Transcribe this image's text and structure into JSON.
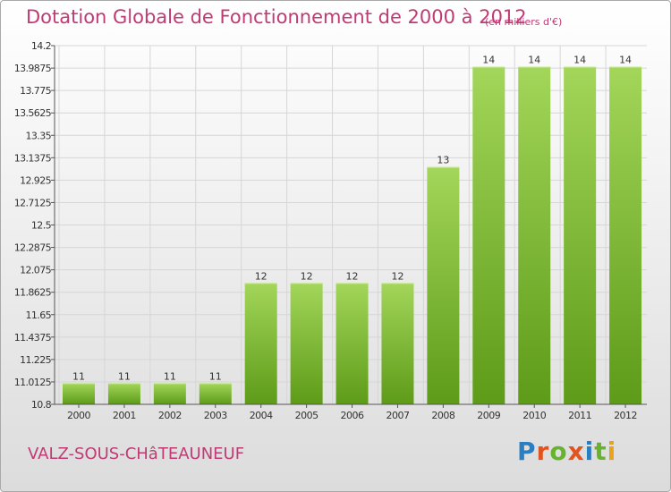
{
  "title": "Dotation Globale de Fonctionnement de 2000 à 2012",
  "unit": "(en milliers d'€)",
  "commune": "VALZ-SOUS-CHâTEAUNEUF",
  "logo": {
    "text": "Proxiti",
    "colors": [
      "#2a7ec2",
      "#e2541f",
      "#67b32e",
      "#e2541f",
      "#2a7ec2",
      "#67b32e",
      "#e8a21b"
    ]
  },
  "colors": {
    "accent": "#c03a74",
    "bar_light": "#a3d65a",
    "bar_dark": "#5d9b18",
    "grid": "#d6d6d6"
  },
  "chart_data": {
    "type": "bar",
    "title": "Dotation Globale de Fonctionnement de 2000 à 2012",
    "xlabel": "",
    "ylabel": "",
    "categories": [
      "2000",
      "2001",
      "2002",
      "2003",
      "2004",
      "2005",
      "2006",
      "2007",
      "2008",
      "2009",
      "2010",
      "2011",
      "2012"
    ],
    "values": [
      11.0,
      11.0,
      11.0,
      11.0,
      11.95,
      11.95,
      11.95,
      11.95,
      13.05,
      14.0,
      14.0,
      14.0,
      14.0
    ],
    "data_labels": [
      "11",
      "11",
      "11",
      "11",
      "12",
      "12",
      "12",
      "12",
      "13",
      "14",
      "14",
      "14",
      "14"
    ],
    "ylim": [
      10.8,
      14.2
    ],
    "yticks": [
      "10.8",
      "11.0125",
      "11.225",
      "11.4375",
      "11.65",
      "11.8625",
      "12.075",
      "12.2875",
      "12.5",
      "12.7125",
      "12.925",
      "13.1375",
      "13.35",
      "13.5625",
      "13.775",
      "13.9875",
      "14.2"
    ],
    "grid": true,
    "legend": "none"
  }
}
